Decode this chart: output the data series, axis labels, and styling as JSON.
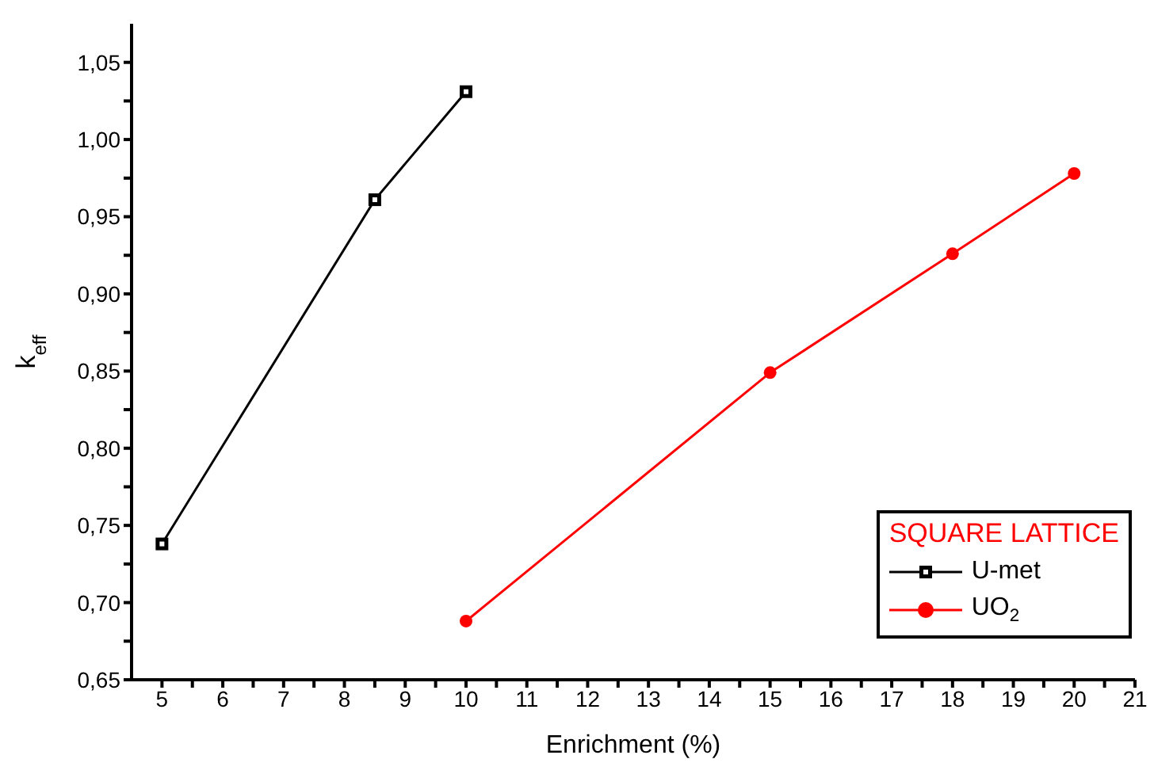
{
  "chart_data": {
    "type": "line",
    "xlabel": "Enrichment (%)",
    "ylabel": "k$_{eff}$",
    "legend_title": "SQUARE LATTICE",
    "legend": "bottom right",
    "grid": false,
    "line_style": "solid",
    "xlim": [
      4.5,
      21
    ],
    "xticks": [
      5,
      {
        "value": 5.5,
        "label": null
      },
      6,
      {
        "value": 6.5,
        "label": null
      },
      7,
      {
        "value": 7.5,
        "label": null
      },
      8,
      {
        "value": 8.5,
        "label": null
      },
      9,
      {
        "value": 9.5,
        "label": null
      },
      10,
      {
        "value": 10.5,
        "label": null
      },
      11,
      {
        "value": 11.5,
        "label": null
      },
      12,
      {
        "value": 12.5,
        "label": null
      },
      13,
      {
        "value": 13.5,
        "label": null
      },
      14,
      {
        "value": 14.5,
        "label": null
      },
      15,
      {
        "value": 15.5,
        "label": null
      },
      16,
      {
        "value": 16.5,
        "label": null
      },
      17,
      {
        "value": 17.5,
        "label": null
      },
      18,
      {
        "value": 18.5,
        "label": null
      },
      19,
      {
        "value": 19.5,
        "label": null
      },
      20,
      {
        "value": 20.5,
        "label": null
      },
      21
    ],
    "ylim": [
      0.65,
      1.075
    ],
    "yticks": [
      {
        "value": 0.65,
        "label": "0,65"
      },
      {
        "value": 0.675,
        "label": null
      },
      {
        "value": 0.7,
        "label": "0,70"
      },
      {
        "value": 0.725,
        "label": null
      },
      {
        "value": 0.75,
        "label": "0,75"
      },
      {
        "value": 0.775,
        "label": null
      },
      {
        "value": 0.8,
        "label": "0,80"
      },
      {
        "value": 0.825,
        "label": null
      },
      {
        "value": 0.85,
        "label": "0,85"
      },
      {
        "value": 0.875,
        "label": null
      },
      {
        "value": 0.9,
        "label": "0,90"
      },
      {
        "value": 0.925,
        "label": null
      },
      {
        "value": 0.95,
        "label": "0,95"
      },
      {
        "value": 0.975,
        "label": null
      },
      {
        "value": 1.0,
        "label": "1,00"
      },
      {
        "value": 1.025,
        "label": null
      },
      {
        "value": 1.05,
        "label": "1,05"
      }
    ],
    "series": [
      {
        "name": "U-met",
        "color": "#000000",
        "marker": "square",
        "x": [
          5,
          8.5,
          10
        ],
        "values": [
          0.738,
          0.961,
          1.031
        ]
      },
      {
        "name": "UO$_{2}$",
        "color": "#ff0000",
        "marker": "circle",
        "x": [
          10,
          15,
          18,
          20
        ],
        "values": [
          0.688,
          0.849,
          0.926,
          0.978
        ]
      }
    ]
  }
}
